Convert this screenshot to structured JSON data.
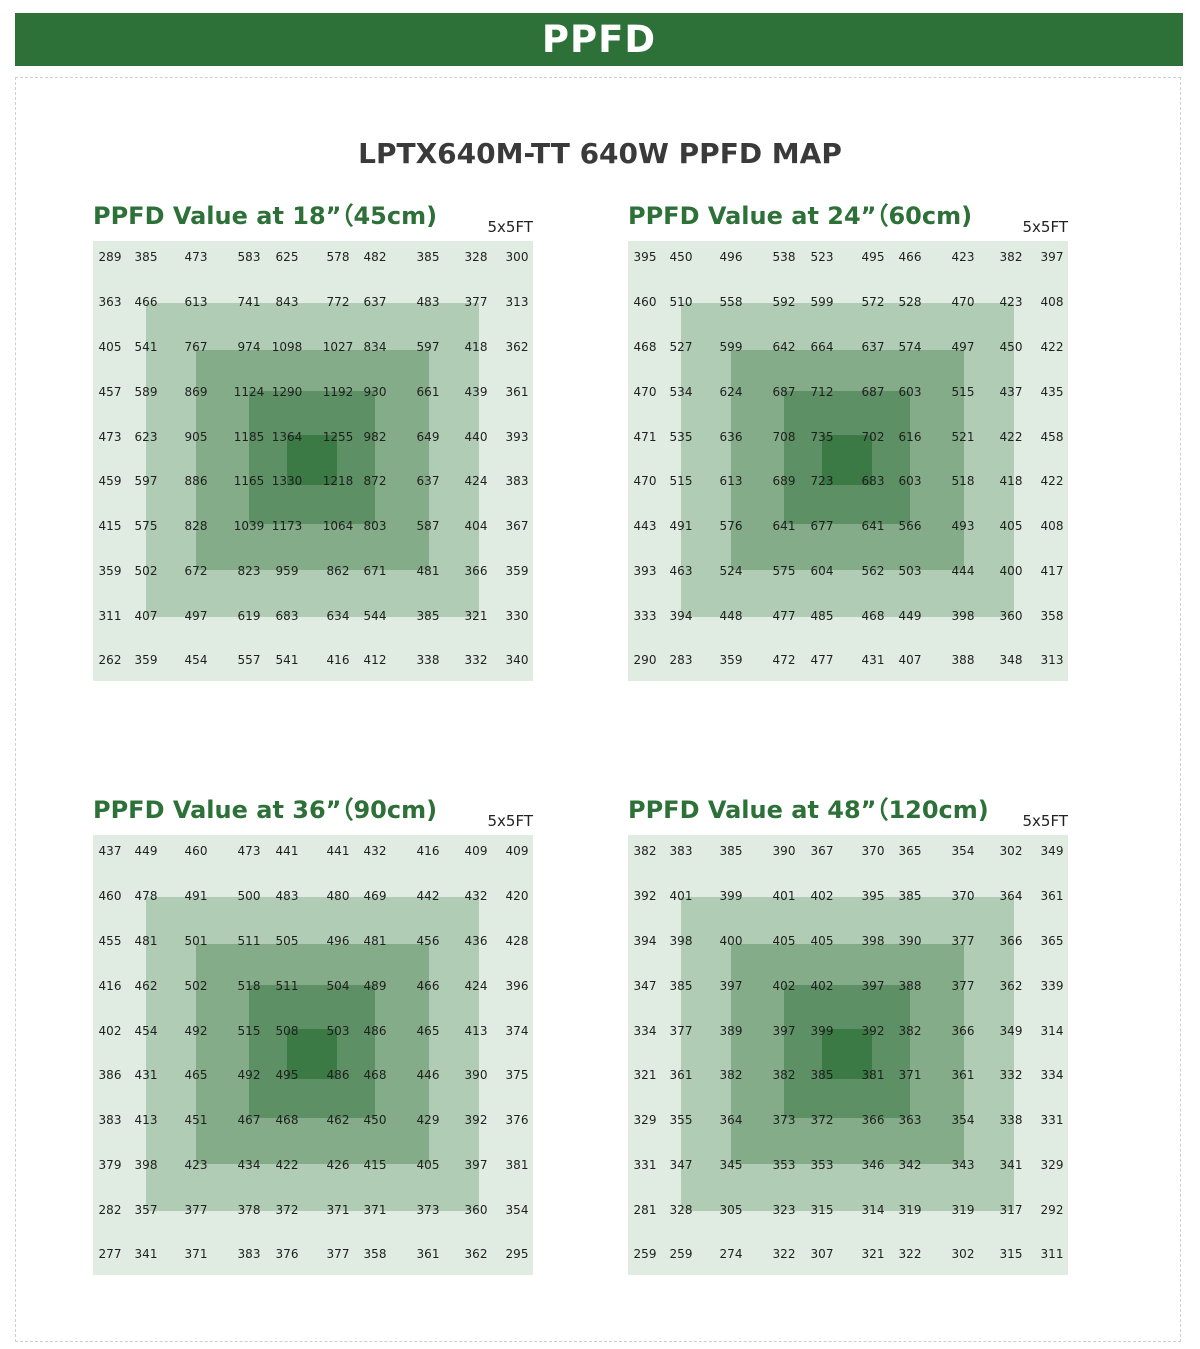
{
  "header": {
    "title": "PPFD"
  },
  "main_title": "LPTX640M-TT 640W PPFD MAP",
  "colors": {
    "accent": "#2d7138",
    "ring0": "#e0ece2",
    "ring1": "#b0ccb4",
    "ring2": "#84ac88",
    "ring3": "#5d9064",
    "ring4": "#3c7a45"
  },
  "chart_data": [
    {
      "type": "heatmap",
      "title": "PPFD Value at 18”（45cm)",
      "size_label": "5x5FT",
      "values": [
        [
          289,
          385,
          473,
          583,
          625,
          578,
          482,
          385,
          328,
          300
        ],
        [
          363,
          466,
          613,
          741,
          843,
          772,
          637,
          483,
          377,
          313
        ],
        [
          405,
          541,
          767,
          974,
          1098,
          1027,
          834,
          597,
          418,
          362
        ],
        [
          457,
          589,
          869,
          1124,
          1290,
          1192,
          930,
          661,
          439,
          361
        ],
        [
          473,
          623,
          905,
          1185,
          1364,
          1255,
          982,
          649,
          440,
          393
        ],
        [
          459,
          597,
          886,
          1165,
          1330,
          1218,
          872,
          637,
          424,
          383
        ],
        [
          415,
          575,
          828,
          1039,
          1173,
          1064,
          803,
          587,
          404,
          367
        ],
        [
          359,
          502,
          672,
          823,
          959,
          862,
          671,
          481,
          366,
          359
        ],
        [
          311,
          407,
          497,
          619,
          683,
          634,
          544,
          385,
          321,
          330
        ],
        [
          262,
          359,
          454,
          557,
          541,
          416,
          412,
          338,
          332,
          340
        ]
      ]
    },
    {
      "type": "heatmap",
      "title": "PPFD Value at 24”（60cm)",
      "size_label": "5x5FT",
      "values": [
        [
          395,
          450,
          496,
          538,
          523,
          495,
          466,
          423,
          382,
          397
        ],
        [
          460,
          510,
          558,
          592,
          599,
          572,
          528,
          470,
          423,
          408
        ],
        [
          468,
          527,
          599,
          642,
          664,
          637,
          574,
          497,
          450,
          422
        ],
        [
          470,
          534,
          624,
          687,
          712,
          687,
          603,
          515,
          437,
          435
        ],
        [
          471,
          535,
          636,
          708,
          735,
          702,
          616,
          521,
          422,
          458
        ],
        [
          470,
          515,
          613,
          689,
          723,
          683,
          603,
          518,
          418,
          422
        ],
        [
          443,
          491,
          576,
          641,
          677,
          641,
          566,
          493,
          405,
          408
        ],
        [
          393,
          463,
          524,
          575,
          604,
          562,
          503,
          444,
          400,
          417
        ],
        [
          333,
          394,
          448,
          477,
          485,
          468,
          449,
          398,
          360,
          358
        ],
        [
          290,
          283,
          359,
          472,
          477,
          431,
          407,
          388,
          348,
          313
        ]
      ]
    },
    {
      "type": "heatmap",
      "title": "PPFD Value at 36”（90cm)",
      "size_label": "5x5FT",
      "values": [
        [
          437,
          449,
          460,
          473,
          441,
          441,
          432,
          416,
          409,
          409
        ],
        [
          460,
          478,
          491,
          500,
          483,
          480,
          469,
          442,
          432,
          420
        ],
        [
          455,
          481,
          501,
          511,
          505,
          496,
          481,
          456,
          436,
          428
        ],
        [
          416,
          462,
          502,
          518,
          511,
          504,
          489,
          466,
          424,
          396
        ],
        [
          402,
          454,
          492,
          515,
          508,
          503,
          486,
          465,
          413,
          374
        ],
        [
          386,
          431,
          465,
          492,
          495,
          486,
          468,
          446,
          390,
          375
        ],
        [
          383,
          413,
          451,
          467,
          468,
          462,
          450,
          429,
          392,
          376
        ],
        [
          379,
          398,
          423,
          434,
          422,
          426,
          415,
          405,
          397,
          381
        ],
        [
          282,
          357,
          377,
          378,
          372,
          371,
          371,
          373,
          360,
          354
        ],
        [
          277,
          341,
          371,
          383,
          376,
          377,
          358,
          361,
          362,
          295
        ]
      ]
    },
    {
      "type": "heatmap",
      "title": "PPFD Value at 48”（120cm)",
      "size_label": "5x5FT",
      "values": [
        [
          382,
          383,
          385,
          390,
          367,
          370,
          365,
          354,
          302,
          349
        ],
        [
          392,
          401,
          399,
          401,
          402,
          395,
          385,
          370,
          364,
          361
        ],
        [
          394,
          398,
          400,
          405,
          405,
          398,
          390,
          377,
          366,
          365
        ],
        [
          347,
          385,
          397,
          402,
          402,
          397,
          388,
          377,
          362,
          339
        ],
        [
          334,
          377,
          389,
          397,
          399,
          392,
          382,
          366,
          349,
          314
        ],
        [
          321,
          361,
          382,
          382,
          385,
          381,
          371,
          361,
          332,
          334
        ],
        [
          329,
          355,
          364,
          373,
          372,
          366,
          363,
          354,
          338,
          331
        ],
        [
          331,
          347,
          345,
          353,
          353,
          346,
          342,
          343,
          341,
          329
        ],
        [
          281,
          328,
          305,
          323,
          315,
          314,
          319,
          319,
          317,
          292
        ],
        [
          259,
          259,
          274,
          322,
          307,
          321,
          322,
          302,
          315,
          311
        ]
      ]
    }
  ]
}
